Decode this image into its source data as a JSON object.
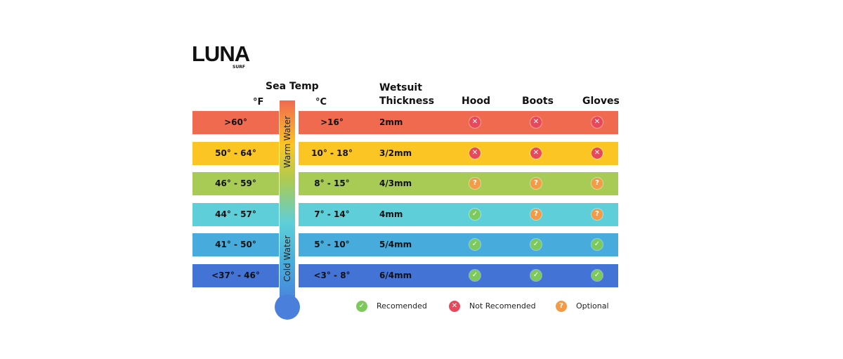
{
  "logo": {
    "name": "LUNA",
    "sub": "SURF"
  },
  "header": {
    "sea_temp": "Sea Temp",
    "f": "°F",
    "c": "°C",
    "thickness_line1": "Wetsuit",
    "thickness_line2": "Thickness",
    "hood": "Hood",
    "boots": "Boots",
    "gloves": "Gloves"
  },
  "thermometer": {
    "warm": "Warm Water",
    "cold": "Cold Water"
  },
  "rows": [
    {
      "f": ">60°",
      "c": ">16°",
      "thickness": "2mm",
      "hood": "not",
      "boots": "not",
      "gloves": "not",
      "color": "#f06a50"
    },
    {
      "f": "50° - 64°",
      "c": "10° - 18°",
      "thickness": "3/2mm",
      "hood": "not",
      "boots": "not",
      "gloves": "not",
      "color": "#fbc623"
    },
    {
      "f": "46° - 59°",
      "c": "8° - 15°",
      "thickness": "4/3mm",
      "hood": "opt",
      "boots": "opt",
      "gloves": "opt",
      "color": "#a8cb56"
    },
    {
      "f": "44° - 57°",
      "c": "7° - 14°",
      "thickness": "4mm",
      "hood": "rec",
      "boots": "opt",
      "gloves": "opt",
      "color": "#5ecfd8"
    },
    {
      "f": "41° - 50°",
      "c": "5° - 10°",
      "thickness": "5/4mm",
      "hood": "rec",
      "boots": "rec",
      "gloves": "rec",
      "color": "#47acdc"
    },
    {
      "f": "<37° - 46°",
      "c": "<3° - 8°",
      "thickness": "6/4mm",
      "hood": "rec",
      "boots": "rec",
      "gloves": "rec",
      "color": "#4473d6"
    }
  ],
  "legend": {
    "rec": "Recomended",
    "not": "Not Recomended",
    "opt": "Optional"
  },
  "icon_colors": {
    "rec": "#7ccb5a",
    "not": "#e8485a",
    "opt": "#f59a45"
  }
}
